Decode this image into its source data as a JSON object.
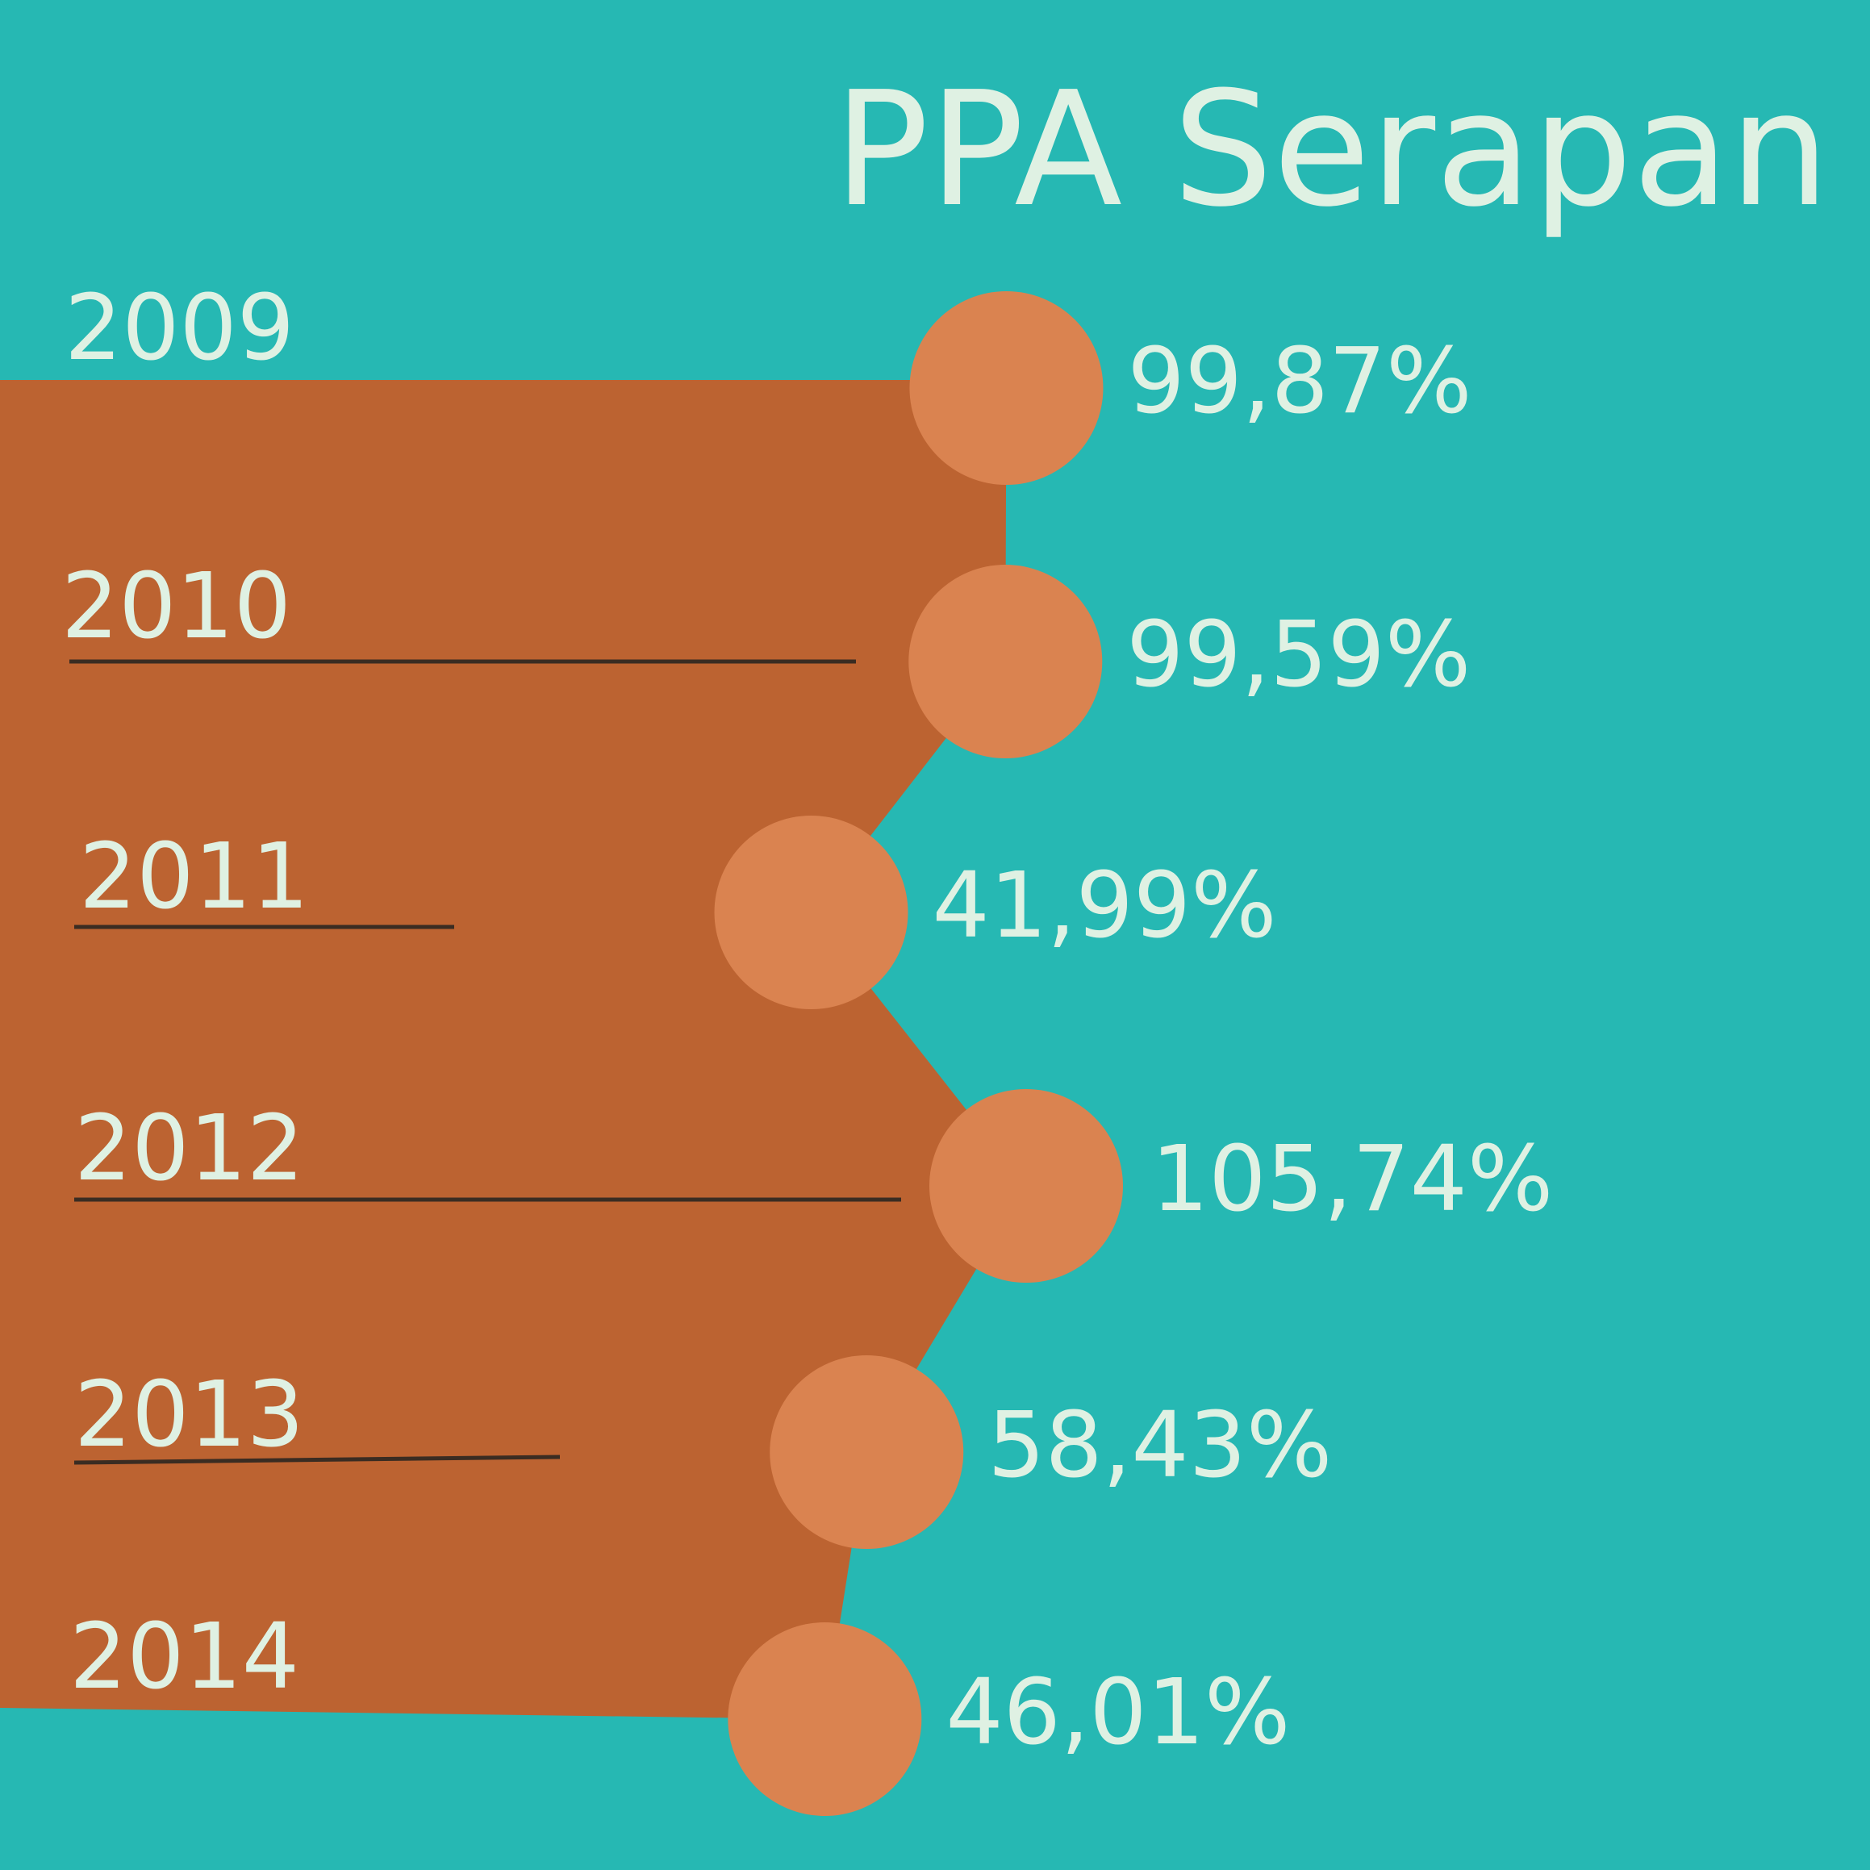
{
  "title": "PPA Serapan",
  "colors": {
    "background": "#26b8b3",
    "area": "#bc6331",
    "marker": "#da8350",
    "text": "#dff1e3",
    "underline": "#3a2c22"
  },
  "chart_data": {
    "type": "area",
    "title": "PPA Serapan",
    "xlabel": "",
    "ylabel": "",
    "categories": [
      "2009",
      "2010",
      "2011",
      "2012",
      "2013",
      "2014"
    ],
    "values": [
      99.87,
      99.59,
      41.99,
      105.74,
      58.43,
      46.01
    ],
    "value_labels": [
      "99,87%",
      "99,59%",
      "41,99%",
      "105,74%",
      "58,43%",
      "46,01%"
    ],
    "unit": "%",
    "orientation": "horizontal",
    "grid": false,
    "legend": "none"
  }
}
